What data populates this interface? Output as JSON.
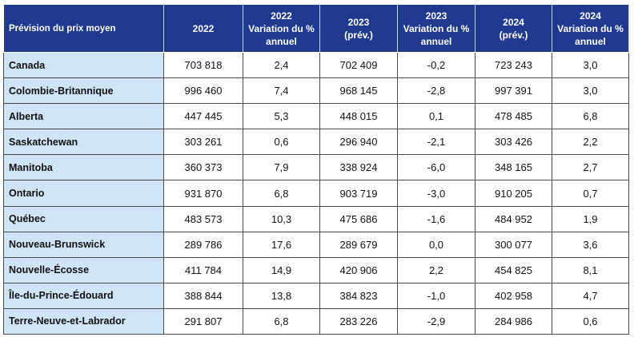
{
  "table": {
    "headers": [
      {
        "lines": [
          "Prévision du prix moyen"
        ]
      },
      {
        "lines": [
          "2022"
        ]
      },
      {
        "lines": [
          "2022",
          "Variation du %",
          "annuel"
        ]
      },
      {
        "lines": [
          "2023",
          "(prév.)"
        ]
      },
      {
        "lines": [
          "2023",
          "Variation du %",
          "annuel"
        ]
      },
      {
        "lines": [
          "2024",
          "(prév.)"
        ]
      },
      {
        "lines": [
          "2024",
          "Variation du %",
          "annuel"
        ]
      }
    ],
    "rows": [
      [
        "Canada",
        "703 818",
        "2,4",
        "702 409",
        "-0,2",
        "723 243",
        "3,0"
      ],
      [
        "Colombie-Britannique",
        "996 460",
        "7,4",
        "968 145",
        "-2,8",
        "997 391",
        "3,0"
      ],
      [
        "Alberta",
        "447 445",
        "5,3",
        "448 015",
        "0,1",
        "478 485",
        "6,8"
      ],
      [
        "Saskatchewan",
        "303 261",
        "0,6",
        "296 940",
        "-2,1",
        "303 426",
        "2,2"
      ],
      [
        "Manitoba",
        "360 373",
        "7,9",
        "338 924",
        "-6,0",
        "348 165",
        "2,7"
      ],
      [
        "Ontario",
        "931 870",
        "6,8",
        "903 719",
        "-3,0",
        "910 205",
        "0,7"
      ],
      [
        "Québec",
        "483 573",
        "10,3",
        "475 686",
        "-1,6",
        "484 952",
        "1,9"
      ],
      [
        "Nouveau-Brunswick",
        "289 786",
        "17,6",
        "289 679",
        "0,0",
        "300 077",
        "3,6"
      ],
      [
        "Nouvelle-Écosse",
        "411 784",
        "14,9",
        "420 906",
        "2,2",
        "454 825",
        "8,1"
      ],
      [
        "Île-du-Prince-Édouard",
        "388 844",
        "13,8",
        "384 823",
        "-1,0",
        "402 958",
        "4,7"
      ],
      [
        "Terre-Neuve-et-Labrador",
        "291 807",
        "6,8",
        "283 226",
        "-2,9",
        "284 986",
        "0,6"
      ]
    ]
  },
  "colors": {
    "header_bg": "#1f3a8f",
    "header_text": "#ffffff",
    "first_column_bg": "#cfe4f6",
    "cell_border": "#4a4a4a"
  }
}
